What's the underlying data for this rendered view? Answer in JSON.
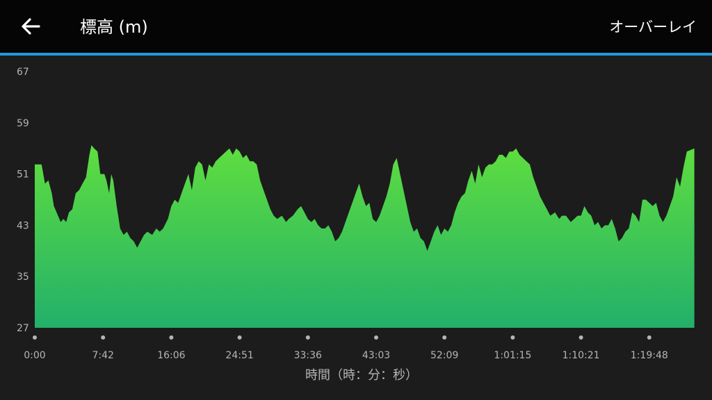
{
  "header": {
    "back_icon": "arrow-left-icon",
    "title": "標高 (m)",
    "overlay_label": "オーバーレイ"
  },
  "colors": {
    "header_bg": "#050505",
    "accent": "#1e9be0",
    "chart_bg": "#1c1c1c",
    "fill_top": "#5fde3f",
    "fill_bottom": "#22b06a",
    "label": "#b5b5b5"
  },
  "chart_data": {
    "type": "area",
    "title": "",
    "xlabel": "時間（時：分：秒）",
    "ylabel": "",
    "ylim": [
      27,
      67
    ],
    "y_ticks": [
      "67",
      "59",
      "51",
      "43",
      "35",
      "27"
    ],
    "x_ticks": [
      "0:00",
      "7:42",
      "16:06",
      "24:51",
      "33:36",
      "43:03",
      "52:09",
      "1:01:15",
      "1:10:21",
      "1:19:48"
    ],
    "x_range_index": [
      0,
      9.66
    ],
    "grid": false,
    "legend": "none",
    "series": [
      {
        "values": [
          [
            0.0,
            52.5
          ],
          [
            0.1,
            52.5
          ],
          [
            0.15,
            49.5
          ],
          [
            0.2,
            50.0
          ],
          [
            0.25,
            48.0
          ],
          [
            0.28,
            46.0
          ],
          [
            0.32,
            45.0
          ],
          [
            0.38,
            43.5
          ],
          [
            0.42,
            44.0
          ],
          [
            0.46,
            43.5
          ],
          [
            0.5,
            45.0
          ],
          [
            0.55,
            45.5
          ],
          [
            0.6,
            48.0
          ],
          [
            0.65,
            48.5
          ],
          [
            0.7,
            49.5
          ],
          [
            0.75,
            50.5
          ],
          [
            0.8,
            54.0
          ],
          [
            0.83,
            55.5
          ],
          [
            0.87,
            55.0
          ],
          [
            0.92,
            54.5
          ],
          [
            0.96,
            51.0
          ],
          [
            1.02,
            51.0
          ],
          [
            1.05,
            50.0
          ],
          [
            1.09,
            48.0
          ],
          [
            1.12,
            51.0
          ],
          [
            1.15,
            50.0
          ],
          [
            1.2,
            46.0
          ],
          [
            1.25,
            42.5
          ],
          [
            1.3,
            41.5
          ],
          [
            1.35,
            42.0
          ],
          [
            1.4,
            41.0
          ],
          [
            1.45,
            40.5
          ],
          [
            1.5,
            39.5
          ],
          [
            1.55,
            40.5
          ],
          [
            1.6,
            41.5
          ],
          [
            1.65,
            42.0
          ],
          [
            1.72,
            41.5
          ],
          [
            1.78,
            42.5
          ],
          [
            1.83,
            42.0
          ],
          [
            1.88,
            42.5
          ],
          [
            1.95,
            44.0
          ],
          [
            2.0,
            46.0
          ],
          [
            2.05,
            47.0
          ],
          [
            2.1,
            46.5
          ],
          [
            2.15,
            48.0
          ],
          [
            2.2,
            49.5
          ],
          [
            2.25,
            51.0
          ],
          [
            2.3,
            48.5
          ],
          [
            2.35,
            52.0
          ],
          [
            2.4,
            53.0
          ],
          [
            2.45,
            52.5
          ],
          [
            2.5,
            50.0
          ],
          [
            2.55,
            52.5
          ],
          [
            2.6,
            52.0
          ],
          [
            2.65,
            53.0
          ],
          [
            2.7,
            53.5
          ],
          [
            2.75,
            54.0
          ],
          [
            2.8,
            54.5
          ],
          [
            2.85,
            55.0
          ],
          [
            2.9,
            54.0
          ],
          [
            2.95,
            55.0
          ],
          [
            3.0,
            54.5
          ],
          [
            3.05,
            53.5
          ],
          [
            3.1,
            54.0
          ],
          [
            3.15,
            53.0
          ],
          [
            3.2,
            53.0
          ],
          [
            3.25,
            52.5
          ],
          [
            3.3,
            50.0
          ],
          [
            3.35,
            48.5
          ],
          [
            3.4,
            47.0
          ],
          [
            3.45,
            45.5
          ],
          [
            3.5,
            44.5
          ],
          [
            3.55,
            44.0
          ],
          [
            3.62,
            44.5
          ],
          [
            3.68,
            43.5
          ],
          [
            3.72,
            44.0
          ],
          [
            3.78,
            44.5
          ],
          [
            3.85,
            45.5
          ],
          [
            3.9,
            46.0
          ],
          [
            3.95,
            45.0
          ],
          [
            4.0,
            44.0
          ],
          [
            4.05,
            43.5
          ],
          [
            4.1,
            44.0
          ],
          [
            4.15,
            43.0
          ],
          [
            4.2,
            42.5
          ],
          [
            4.25,
            42.5
          ],
          [
            4.3,
            43.0
          ],
          [
            4.35,
            42.0
          ],
          [
            4.4,
            40.5
          ],
          [
            4.45,
            41.0
          ],
          [
            4.5,
            42.0
          ],
          [
            4.55,
            43.5
          ],
          [
            4.6,
            45.0
          ],
          [
            4.65,
            46.5
          ],
          [
            4.7,
            48.0
          ],
          [
            4.75,
            49.5
          ],
          [
            4.8,
            47.5
          ],
          [
            4.85,
            46.0
          ],
          [
            4.9,
            46.5
          ],
          [
            4.95,
            44.0
          ],
          [
            5.0,
            43.5
          ],
          [
            5.05,
            44.5
          ],
          [
            5.1,
            46.0
          ],
          [
            5.15,
            47.5
          ],
          [
            5.2,
            49.5
          ],
          [
            5.25,
            52.5
          ],
          [
            5.3,
            53.5
          ],
          [
            5.35,
            51.0
          ],
          [
            5.4,
            48.5
          ],
          [
            5.45,
            46.0
          ],
          [
            5.5,
            43.5
          ],
          [
            5.55,
            42.0
          ],
          [
            5.6,
            42.5
          ],
          [
            5.65,
            41.0
          ],
          [
            5.7,
            40.5
          ],
          [
            5.75,
            39.0
          ],
          [
            5.8,
            40.5
          ],
          [
            5.85,
            42.0
          ],
          [
            5.9,
            43.0
          ],
          [
            5.95,
            41.5
          ],
          [
            6.0,
            42.5
          ],
          [
            6.05,
            42.0
          ],
          [
            6.1,
            43.0
          ],
          [
            6.15,
            45.0
          ],
          [
            6.2,
            46.5
          ],
          [
            6.25,
            47.5
          ],
          [
            6.3,
            48.0
          ],
          [
            6.35,
            50.0
          ],
          [
            6.4,
            51.5
          ],
          [
            6.45,
            49.5
          ],
          [
            6.5,
            52.5
          ],
          [
            6.55,
            50.5
          ],
          [
            6.6,
            52.0
          ],
          [
            6.65,
            52.5
          ],
          [
            6.7,
            52.5
          ],
          [
            6.75,
            53.0
          ],
          [
            6.8,
            54.0
          ],
          [
            6.85,
            54.0
          ],
          [
            6.9,
            53.5
          ],
          [
            6.95,
            54.5
          ],
          [
            7.0,
            54.5
          ],
          [
            7.05,
            55.0
          ],
          [
            7.1,
            54.0
          ],
          [
            7.15,
            53.5
          ],
          [
            7.2,
            53.0
          ],
          [
            7.25,
            52.5
          ],
          [
            7.3,
            50.5
          ],
          [
            7.35,
            49.0
          ],
          [
            7.4,
            47.5
          ],
          [
            7.45,
            46.5
          ],
          [
            7.5,
            45.5
          ],
          [
            7.55,
            44.5
          ],
          [
            7.62,
            45.0
          ],
          [
            7.68,
            44.0
          ],
          [
            7.72,
            44.5
          ],
          [
            7.78,
            44.5
          ],
          [
            7.85,
            43.5
          ],
          [
            7.9,
            44.0
          ],
          [
            7.95,
            44.5
          ],
          [
            8.0,
            44.5
          ],
          [
            8.05,
            46.0
          ],
          [
            8.1,
            45.0
          ],
          [
            8.15,
            44.5
          ],
          [
            8.2,
            43.0
          ],
          [
            8.25,
            43.5
          ],
          [
            8.3,
            42.5
          ],
          [
            8.35,
            43.0
          ],
          [
            8.4,
            43.0
          ],
          [
            8.45,
            44.0
          ],
          [
            8.5,
            42.5
          ],
          [
            8.55,
            40.5
          ],
          [
            8.6,
            41.0
          ],
          [
            8.65,
            42.0
          ],
          [
            8.7,
            42.5
          ],
          [
            8.75,
            45.0
          ],
          [
            8.8,
            44.5
          ],
          [
            8.85,
            43.5
          ],
          [
            8.9,
            47.0
          ],
          [
            8.95,
            47.0
          ],
          [
            9.0,
            46.5
          ],
          [
            9.05,
            46.0
          ],
          [
            9.1,
            46.5
          ],
          [
            9.15,
            44.5
          ],
          [
            9.2,
            43.5
          ],
          [
            9.25,
            44.5
          ],
          [
            9.3,
            46.0
          ],
          [
            9.35,
            47.5
          ],
          [
            9.4,
            50.5
          ],
          [
            9.45,
            49.0
          ],
          [
            9.5,
            52.0
          ],
          [
            9.55,
            54.5
          ],
          [
            9.66,
            55.0
          ]
        ]
      }
    ]
  }
}
